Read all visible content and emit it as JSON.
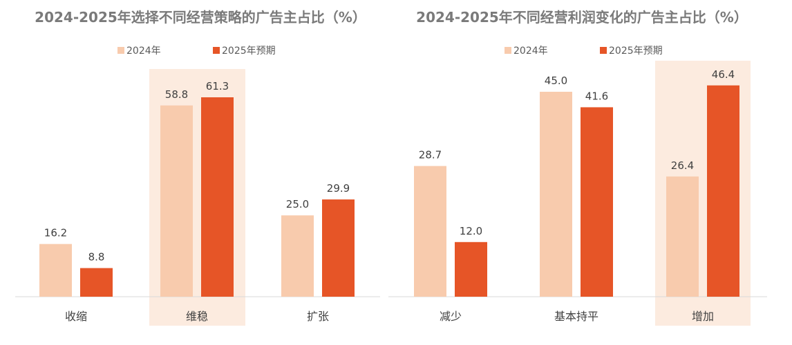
{
  "colors": {
    "series_2024": "#F8CBAD",
    "series_2025": "#E65527",
    "highlight": "#FCEBDF",
    "axis": "#d9d9d9"
  },
  "chart_data": [
    {
      "type": "bar",
      "title": "2024-2025年选择不同经营策略的广告主占比（%）",
      "categories": [
        "收缩",
        "维稳",
        "扩张"
      ],
      "series": [
        {
          "name": "2024年",
          "values": [
            16.2,
            58.8,
            25.0
          ]
        },
        {
          "name": "2025年预期",
          "values": [
            8.8,
            61.3,
            29.9
          ]
        }
      ],
      "highlighted_category": "维稳",
      "ylim": [
        0,
        70
      ],
      "xlabel": "",
      "ylabel": "",
      "grid": false,
      "legend": "top-center"
    },
    {
      "type": "bar",
      "title": "2024-2025年不同经营利润变化的广告主占比（%）",
      "categories": [
        "减少",
        "基本持平",
        "增加"
      ],
      "series": [
        {
          "name": "2024年",
          "values": [
            28.7,
            45.0,
            26.4
          ]
        },
        {
          "name": "2025年预期",
          "values": [
            12.0,
            41.6,
            46.4
          ]
        }
      ],
      "highlighted_category": "增加",
      "ylim": [
        0,
        50
      ],
      "xlabel": "",
      "ylabel": "",
      "grid": false,
      "legend": "top-center"
    }
  ]
}
